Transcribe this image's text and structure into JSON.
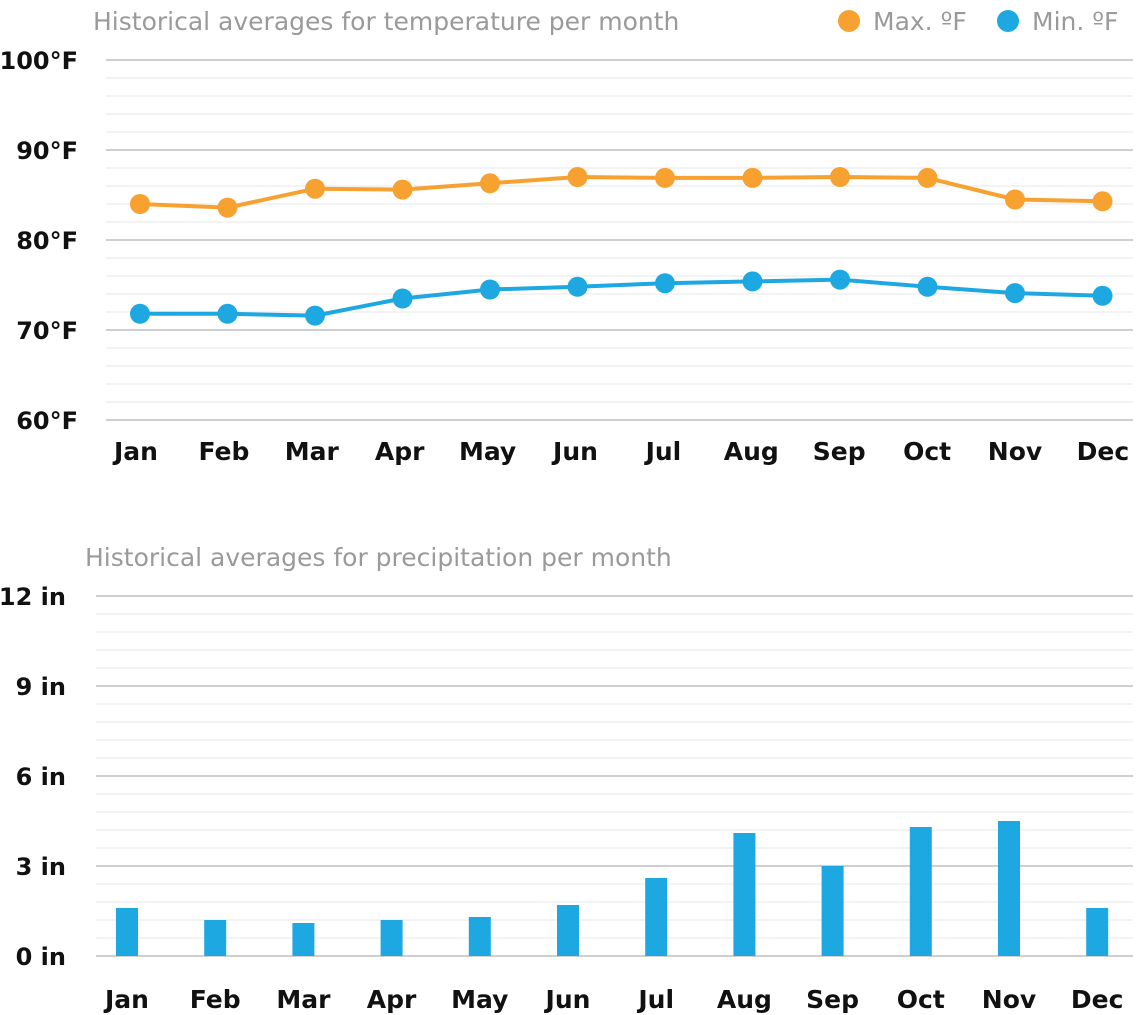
{
  "chart_data": [
    {
      "type": "line",
      "title": "Historical averages for temperature per month",
      "categories": [
        "Jan",
        "Feb",
        "Mar",
        "Apr",
        "May",
        "Jun",
        "Jul",
        "Aug",
        "Sep",
        "Oct",
        "Nov",
        "Dec"
      ],
      "y_unit": "°F",
      "ylim": [
        60,
        100
      ],
      "yticks": [
        {
          "value": 100,
          "label": "100°F"
        },
        {
          "value": 90,
          "label": "90°F"
        },
        {
          "value": 80,
          "label": "80°F"
        },
        {
          "value": 70,
          "label": "70°F"
        },
        {
          "value": 60,
          "label": "60°F"
        }
      ],
      "minor_step": 2,
      "legend_position": "top-right",
      "series": [
        {
          "name": "Max. ºF",
          "color": "#f6a130",
          "values": [
            84.0,
            83.6,
            85.7,
            85.6,
            86.3,
            87.0,
            86.9,
            86.9,
            87.0,
            86.9,
            84.5,
            84.3
          ]
        },
        {
          "name": "Min. ºF",
          "color": "#1ea8e2",
          "values": [
            71.8,
            71.8,
            71.6,
            73.5,
            74.5,
            74.8,
            75.2,
            75.4,
            75.6,
            74.8,
            74.1,
            73.8
          ]
        }
      ]
    },
    {
      "type": "bar",
      "title": "Historical averages for precipitation per month",
      "categories": [
        "Jan",
        "Feb",
        "Mar",
        "Apr",
        "May",
        "Jun",
        "Jul",
        "Aug",
        "Sep",
        "Oct",
        "Nov",
        "Dec"
      ],
      "y_unit": "in",
      "ylim": [
        0,
        12
      ],
      "yticks": [
        {
          "value": 12,
          "label": "12 in"
        },
        {
          "value": 9,
          "label": "9 in"
        },
        {
          "value": 6,
          "label": "6 in"
        },
        {
          "value": 3,
          "label": "3 in"
        },
        {
          "value": 0,
          "label": "0 in"
        }
      ],
      "minor_step": 0.6,
      "series": [
        {
          "name": "Precipitation",
          "color": "#1ea8e2",
          "values": [
            1.6,
            1.2,
            1.1,
            1.2,
            1.3,
            1.7,
            2.6,
            4.1,
            3.0,
            4.3,
            4.5,
            1.6
          ]
        }
      ]
    }
  ]
}
